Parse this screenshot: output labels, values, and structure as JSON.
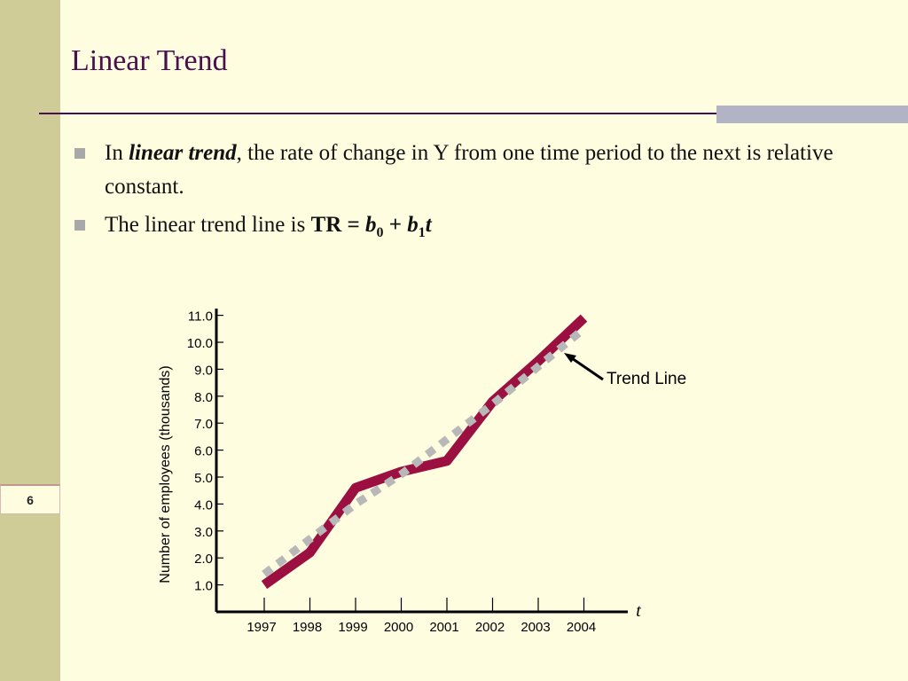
{
  "slide": {
    "title": "Linear Trend",
    "slide_number": "6",
    "bullets": {
      "b1_pre": "In ",
      "b1_term": "linear trend",
      "b1_post": ", the rate of change in Y from one time period to the next is relative constant.",
      "b2_pre": "The linear trend line is ",
      "b2_tr": "TR = ",
      "b2_b": "b",
      "b2_sub0": "0",
      "b2_plus": " + ",
      "b2_sub1": "1",
      "b2_t": "t"
    }
  },
  "colors": {
    "background": "#fffde0",
    "sidebar": "#cfcc98",
    "title": "#4a0f4f",
    "accent_bar": "#b3b3c6",
    "actual_series": "#9b1040",
    "trend_series": "#b8b8b8"
  },
  "chart_data": {
    "type": "line",
    "ylabel": "Number of employees (thousands)",
    "xlabel": "t",
    "ylim": [
      0,
      11
    ],
    "yticks": [
      "1.0",
      "2.0",
      "3.0",
      "4.0",
      "5.0",
      "6.0",
      "7.0",
      "8.0",
      "9.0",
      "10.0",
      "11.0"
    ],
    "categories": [
      "1997",
      "1998",
      "1999",
      "2000",
      "2001",
      "2002",
      "2003",
      "2004"
    ],
    "series": [
      {
        "values": [
          1.0,
          2.2,
          4.6,
          5.2,
          5.6,
          7.8,
          9.3,
          10.9
        ],
        "style": "solid"
      },
      {
        "values": [
          1.4,
          2.7,
          4.0,
          5.1,
          6.4,
          7.7,
          9.1,
          10.5
        ],
        "style": "dashed"
      }
    ],
    "annotation": "Trend Line"
  }
}
